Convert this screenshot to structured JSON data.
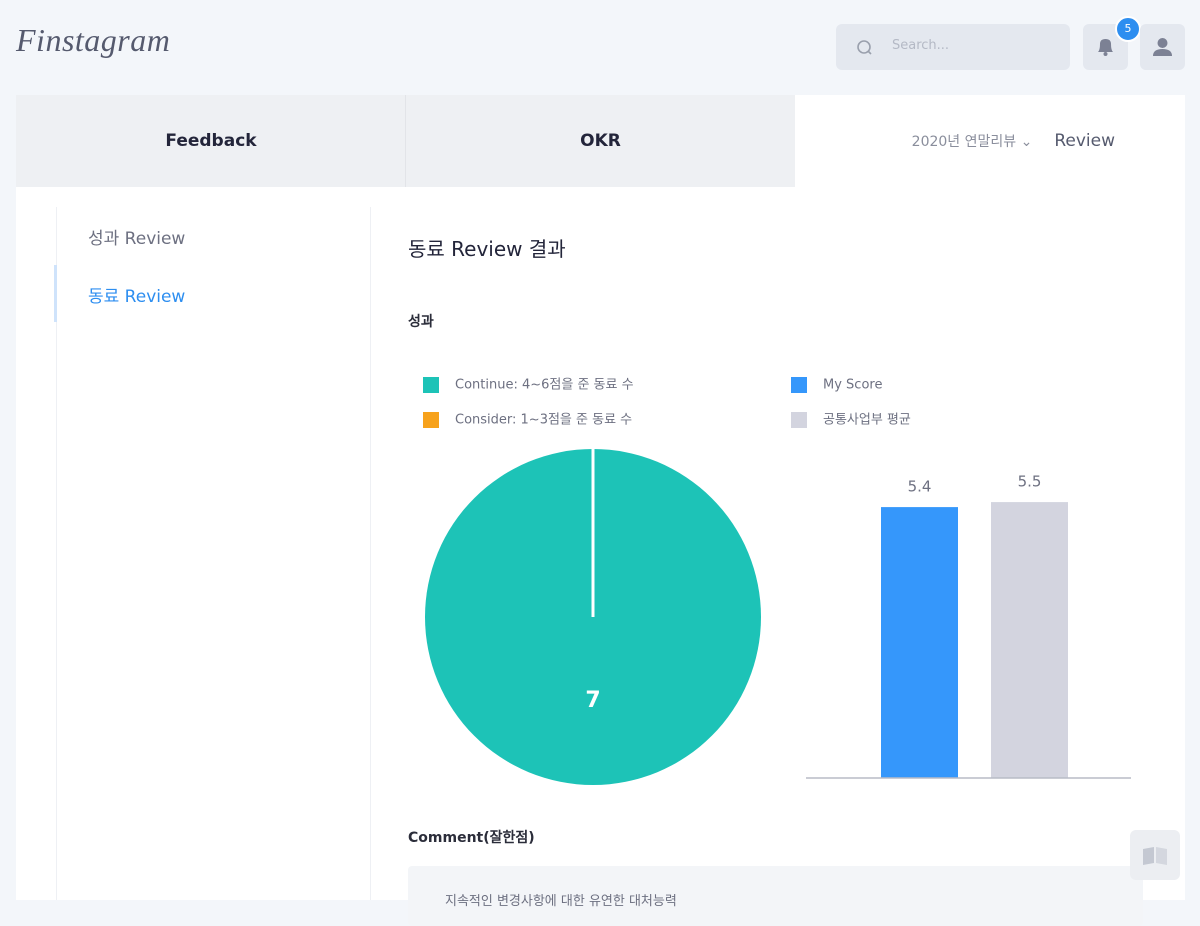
{
  "header": {
    "logo": "Finstagram",
    "search_placeholder": "Search...",
    "notification_count": 5
  },
  "tabs": [
    "Feedback",
    "OKR",
    "Review"
  ],
  "review_period": "2020년 연말리뷰",
  "sidebar": [
    "성과 Review",
    "동료 Review"
  ],
  "content": {
    "title": "동료 Review 결과",
    "section": "성과"
  },
  "chart_data": [
    {
      "type": "pie",
      "categories": [
        "Continue: 4~6점을 준 동료 수",
        "Consider: 1~3점을 준 동료 수"
      ],
      "values": [
        7,
        0
      ],
      "colors": [
        "#1dc3b7",
        "#f7a21b"
      ]
    },
    {
      "type": "bar",
      "categories": [
        "My Score",
        "공통사업부 평균"
      ],
      "values": [
        5.4,
        5.5
      ],
      "colors": [
        "#3597fb",
        "#d3d4df"
      ],
      "ylim": [
        0,
        6
      ]
    }
  ],
  "comment": {
    "label": "Comment(잘한점)",
    "text": "지속적인 변경사항에 대한 유연한 대처능력"
  }
}
